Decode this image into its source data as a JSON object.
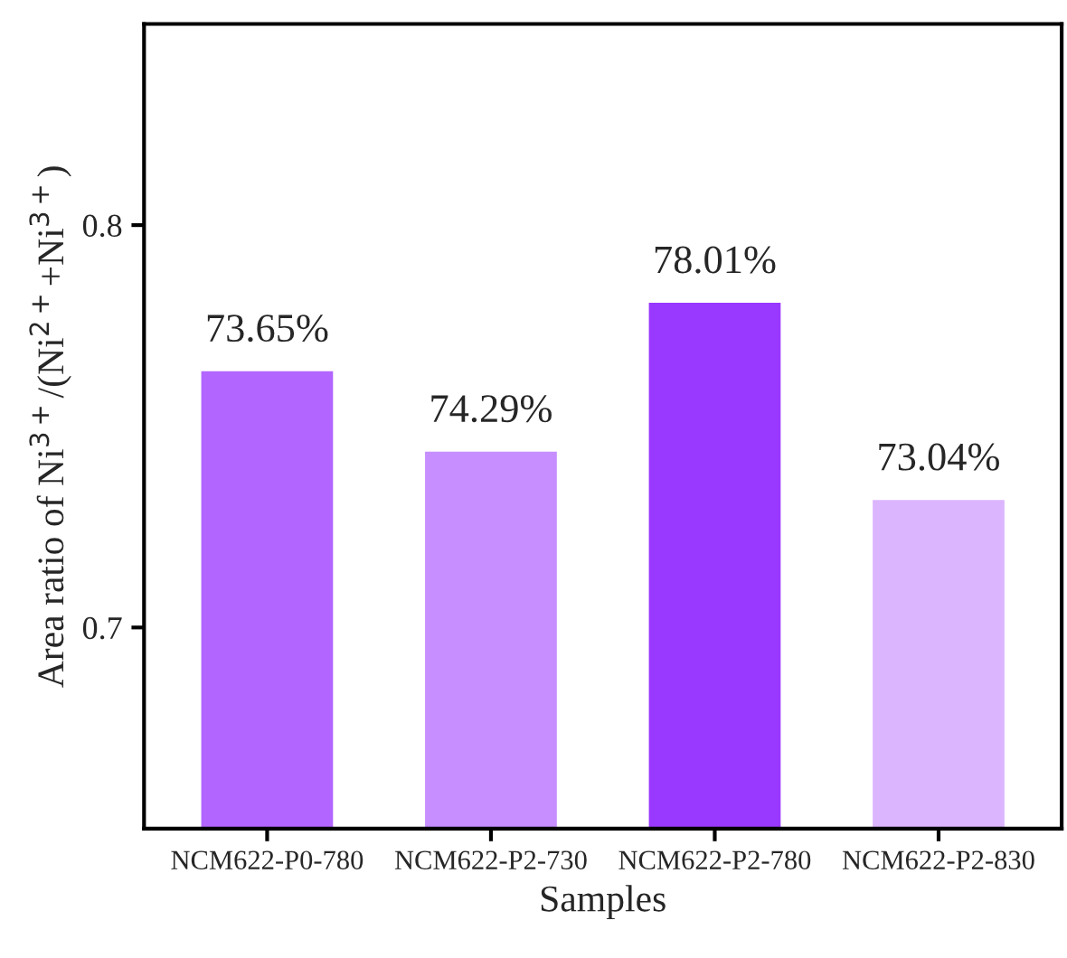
{
  "chart_data": {
    "type": "bar",
    "xlabel": "Samples",
    "ylabel": "Area ratio of Ni$^{3+}$/(Ni$^{2+}$+Ni$^{3+}$)",
    "categories": [
      "NCM622-P0-780",
      "NCM622-P2-730",
      "NCM622-P2-780",
      "NCM622-P2-830"
    ],
    "values": [
      0.764,
      0.744,
      0.781,
      0.732
    ],
    "colors": [
      "#b265ff",
      "#c68eff",
      "#9938ff",
      "#dcb5ff"
    ],
    "annotations": [
      {
        "text": "73.65%",
        "x": "NCM622-P0-780",
        "y": 0.764
      },
      {
        "text": "74.29%",
        "x": "NCM622-P2-730",
        "y": 0.744
      },
      {
        "text": "78.01%",
        "x": "NCM622-P2-780",
        "y": 0.781
      },
      {
        "text": "73.04%",
        "x": "NCM622-P2-830",
        "y": 0.732
      }
    ],
    "ylim": [
      0.65,
      0.85
    ],
    "yticks": [
      0.7,
      0.8
    ],
    "grid": false,
    "legend": false
  }
}
